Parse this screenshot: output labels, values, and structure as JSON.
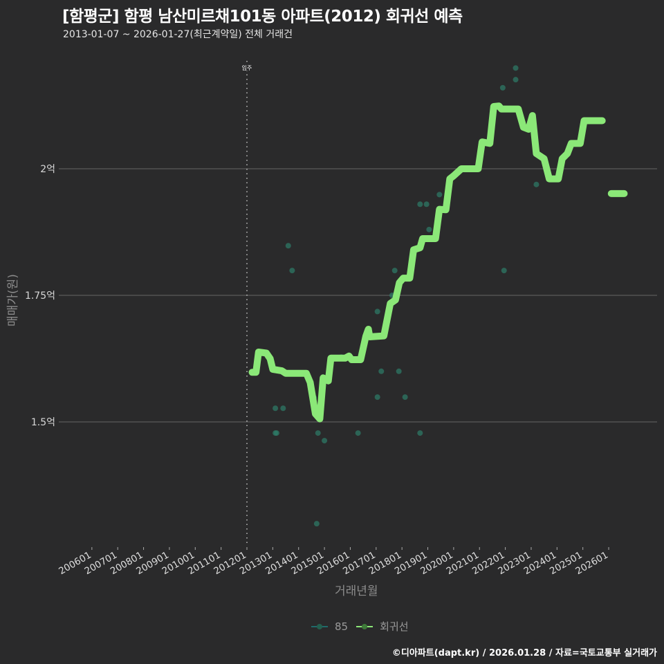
{
  "header": {
    "title": "[함평군] 함평 남산미르채101동 아파트(2012) 회귀선 예측",
    "subtitle": "2013-01-07 ~ 2026-01-27(최근계약일) 전체 거래건"
  },
  "footer": {
    "credit": "©디아파트(dapt.kr) / 2026.01.28 / 자료=국토교통부 실거래가"
  },
  "colors": {
    "background": "#2a2a2b",
    "gridline": "#5a5a5a",
    "scatter": "#2e7d6a",
    "regression": "#8be878",
    "annotation_line": "#cfcfcf"
  },
  "chart_data": {
    "type": "scatter",
    "title": "[함평군] 함평 남산미르채101동 아파트(2012) 회귀선 예측",
    "subtitle": "2013-01-07 ~ 2026-01-27(최근계약일) 전체 거래건",
    "xlabel": "거래년월",
    "ylabel": "매매가(원)",
    "x_ticks": [
      "200601",
      "200701",
      "200801",
      "200901",
      "201001",
      "201101",
      "201201",
      "201301",
      "201401",
      "201501",
      "201601",
      "201701",
      "201801",
      "201901",
      "202001",
      "202101",
      "202201",
      "202301",
      "202401",
      "202501",
      "202601"
    ],
    "y_ticks": [
      {
        "value": 2.0,
        "label": "2억"
      },
      {
        "value": 1.75,
        "label": "1.75억"
      },
      {
        "value": 1.5,
        "label": "1.5억"
      }
    ],
    "ylim": [
      1.26,
      2.26
    ],
    "xlim": [
      2005.3,
      2027.0
    ],
    "grid": "horizontal major only",
    "legend_position": "bottom",
    "legend": [
      {
        "label": "85",
        "type": "scatter"
      },
      {
        "label": "회귀선",
        "type": "line"
      }
    ],
    "annotations": [
      {
        "label": "입주",
        "x": 2012.0,
        "style": "dotted vertical line"
      }
    ],
    "series": [
      {
        "name": "85",
        "unit": "억원",
        "points": [
          [
            2013.1,
            1.527
          ],
          [
            2013.4,
            1.527
          ],
          [
            2013.1,
            1.478
          ],
          [
            2013.15,
            1.478
          ],
          [
            2013.6,
            1.848
          ],
          [
            2013.75,
            1.799
          ],
          [
            2014.6,
            1.548
          ],
          [
            2014.75,
            1.478
          ],
          [
            2015.0,
            1.463
          ],
          [
            2014.7,
            1.299
          ],
          [
            2015.65,
            1.628
          ],
          [
            2016.3,
            1.478
          ],
          [
            2017.05,
            1.549
          ],
          [
            2017.2,
            1.6
          ],
          [
            2017.05,
            1.718
          ],
          [
            2017.62,
            1.75
          ],
          [
            2017.72,
            1.799
          ],
          [
            2017.88,
            1.6
          ],
          [
            2018.12,
            1.549
          ],
          [
            2018.7,
            1.93
          ],
          [
            2018.95,
            1.93
          ],
          [
            2019.05,
            1.88
          ],
          [
            2019.45,
            1.949
          ],
          [
            2018.7,
            1.478
          ],
          [
            2021.95,
            1.799
          ],
          [
            2023.2,
            1.969
          ],
          [
            2021.9,
            2.16
          ],
          [
            2022.4,
            2.199
          ],
          [
            2022.4,
            2.176
          ]
        ]
      },
      {
        "name": "회귀선",
        "unit": "억원",
        "points": [
          [
            2012.2,
            1.598
          ],
          [
            2012.35,
            1.598
          ],
          [
            2012.45,
            1.638
          ],
          [
            2012.75,
            1.636
          ],
          [
            2012.9,
            1.625
          ],
          [
            2013.0,
            1.604
          ],
          [
            2013.35,
            1.601
          ],
          [
            2013.5,
            1.596
          ],
          [
            2014.3,
            1.596
          ],
          [
            2014.45,
            1.578
          ],
          [
            2014.65,
            1.516
          ],
          [
            2014.82,
            1.506
          ],
          [
            2014.95,
            1.587
          ],
          [
            2015.15,
            1.581
          ],
          [
            2015.25,
            1.626
          ],
          [
            2015.8,
            1.626
          ],
          [
            2015.95,
            1.63
          ],
          [
            2016.05,
            1.623
          ],
          [
            2016.4,
            1.623
          ],
          [
            2016.6,
            1.669
          ],
          [
            2016.7,
            1.683
          ],
          [
            2016.75,
            1.668
          ],
          [
            2017.3,
            1.67
          ],
          [
            2017.55,
            1.734
          ],
          [
            2017.75,
            1.741
          ],
          [
            2017.9,
            1.775
          ],
          [
            2018.05,
            1.784
          ],
          [
            2018.3,
            1.784
          ],
          [
            2018.45,
            1.84
          ],
          [
            2018.7,
            1.844
          ],
          [
            2018.8,
            1.862
          ],
          [
            2019.3,
            1.862
          ],
          [
            2019.45,
            1.92
          ],
          [
            2019.7,
            1.919
          ],
          [
            2019.85,
            1.98
          ],
          [
            2020.0,
            1.986
          ],
          [
            2020.3,
            2.0
          ],
          [
            2020.95,
            2.0
          ],
          [
            2021.1,
            2.053
          ],
          [
            2021.4,
            2.05
          ],
          [
            2021.55,
            2.123
          ],
          [
            2021.75,
            2.124
          ],
          [
            2021.85,
            2.118
          ],
          [
            2022.5,
            2.118
          ],
          [
            2022.7,
            2.082
          ],
          [
            2022.9,
            2.078
          ],
          [
            2023.05,
            2.105
          ],
          [
            2023.2,
            2.03
          ],
          [
            2023.5,
            2.02
          ],
          [
            2023.7,
            1.98
          ],
          [
            2024.05,
            1.98
          ],
          [
            2024.2,
            2.02
          ],
          [
            2024.4,
            2.03
          ],
          [
            2024.55,
            2.05
          ],
          [
            2024.9,
            2.05
          ],
          [
            2025.05,
            2.095
          ],
          [
            2025.75,
            2.095
          ]
        ],
        "forecast_segment": [
          [
            2026.1,
            1.951
          ],
          [
            2026.6,
            1.951
          ]
        ]
      }
    ]
  }
}
